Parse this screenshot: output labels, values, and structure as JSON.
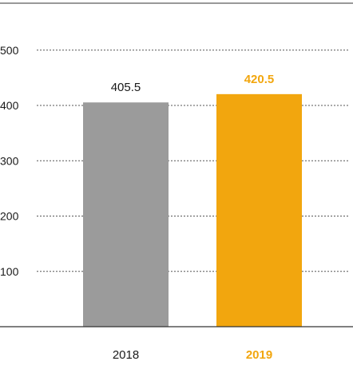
{
  "chart_data": {
    "type": "bar",
    "title": "",
    "xlabel": "",
    "ylabel": "",
    "categories": [
      "2018",
      "2019"
    ],
    "values": [
      405.5,
      420.5
    ],
    "value_labels": [
      "405.5",
      "420.5"
    ],
    "ylim": [
      0,
      500
    ],
    "yticks": [
      100,
      200,
      300,
      400,
      500
    ],
    "ytick_labels": [
      "100",
      "200",
      "300",
      "400",
      "500"
    ],
    "grid": true,
    "grid_style": "dotted",
    "highlight_index": 1,
    "colors": {
      "bars": [
        "#9b9b9b",
        "#f2a60e"
      ],
      "labels": [
        "#1a1a1a",
        "#f2a60e"
      ],
      "grid": "#555555",
      "axis": "#333333"
    }
  }
}
